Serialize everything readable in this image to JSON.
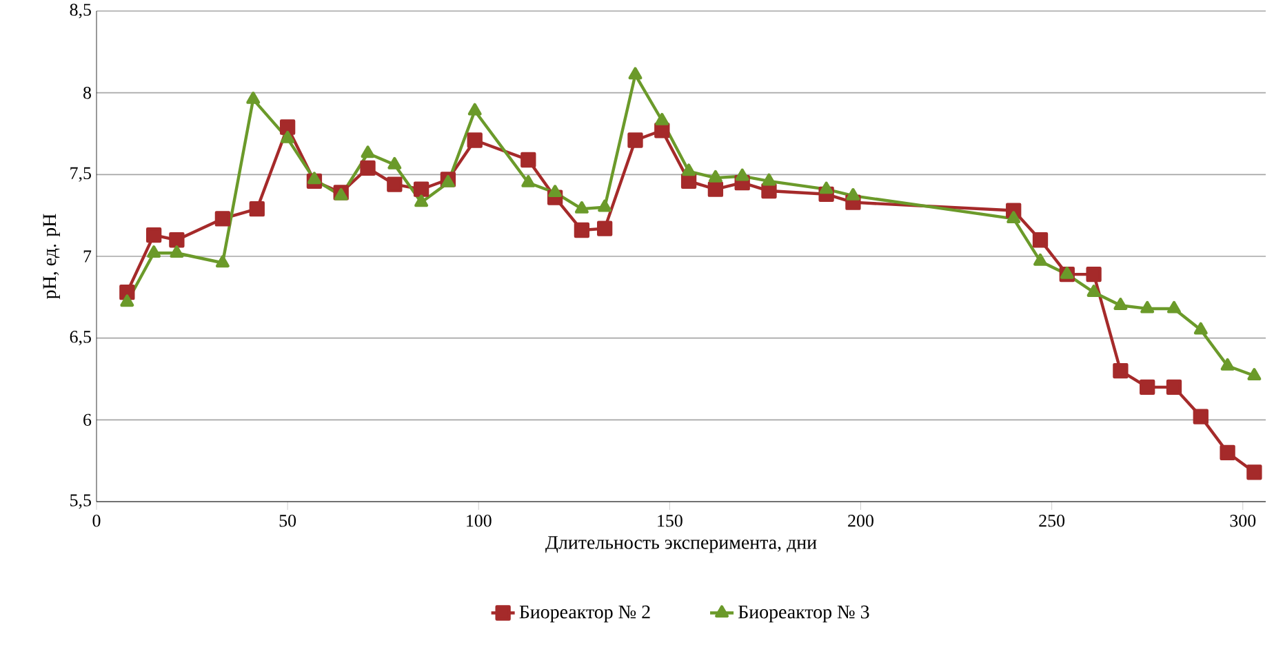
{
  "chart_data": {
    "type": "line",
    "xlabel": "Длительность эксперимента, дни",
    "ylabel": "pH, ед. pH",
    "xlim": [
      0,
      306
    ],
    "xticks": [
      0,
      50,
      100,
      150,
      200,
      250,
      300
    ],
    "ylim": [
      5.5,
      8.5
    ],
    "yticks": [
      {
        "value": 5.5,
        "label": "5,5"
      },
      6,
      {
        "value": 6.5,
        "label": "6,5"
      },
      7,
      {
        "value": 7.5,
        "label": "7,5"
      },
      8,
      {
        "value": 8.5,
        "label": "8,5"
      }
    ],
    "grid": "y",
    "legend": "bottom",
    "line_style": "solid",
    "series": [
      {
        "name": "Биореактор № 2",
        "color": "#a52a2a",
        "marker": "square",
        "x": [
          8,
          15,
          21,
          33,
          42,
          50,
          57,
          64,
          71,
          78,
          85,
          92,
          99,
          113,
          120,
          127,
          133,
          141,
          148,
          155,
          162,
          169,
          176,
          191,
          198,
          240,
          247,
          254,
          261,
          268,
          275,
          282,
          289,
          296,
          303
        ],
        "values": [
          6.78,
          7.13,
          7.1,
          7.23,
          7.29,
          7.79,
          7.46,
          7.39,
          7.54,
          7.44,
          7.41,
          7.47,
          7.71,
          7.59,
          7.36,
          7.16,
          7.17,
          7.71,
          7.77,
          7.46,
          7.41,
          7.45,
          7.4,
          7.38,
          7.33,
          7.28,
          7.1,
          6.89,
          6.89,
          6.3,
          6.2,
          6.2,
          6.02,
          5.8,
          5.68
        ]
      },
      {
        "name": "Биореактор № 3",
        "color": "#6b9a2a",
        "marker": "triangle",
        "x": [
          8,
          15,
          21,
          33,
          41,
          50,
          57,
          64,
          71,
          78,
          85,
          92,
          99,
          113,
          120,
          127,
          133,
          141,
          148,
          155,
          162,
          169,
          176,
          191,
          198,
          240,
          247,
          254,
          261,
          268,
          275,
          282,
          289,
          296,
          303
        ],
        "values": [
          6.72,
          7.02,
          7.02,
          6.96,
          7.96,
          7.72,
          7.47,
          7.37,
          7.63,
          7.56,
          7.33,
          7.45,
          7.89,
          7.45,
          7.39,
          7.29,
          7.3,
          8.11,
          7.83,
          7.52,
          7.48,
          7.49,
          7.46,
          7.41,
          7.37,
          7.23,
          6.97,
          6.89,
          6.78,
          6.7,
          6.68,
          6.68,
          6.55,
          6.33,
          6.27
        ]
      }
    ]
  }
}
